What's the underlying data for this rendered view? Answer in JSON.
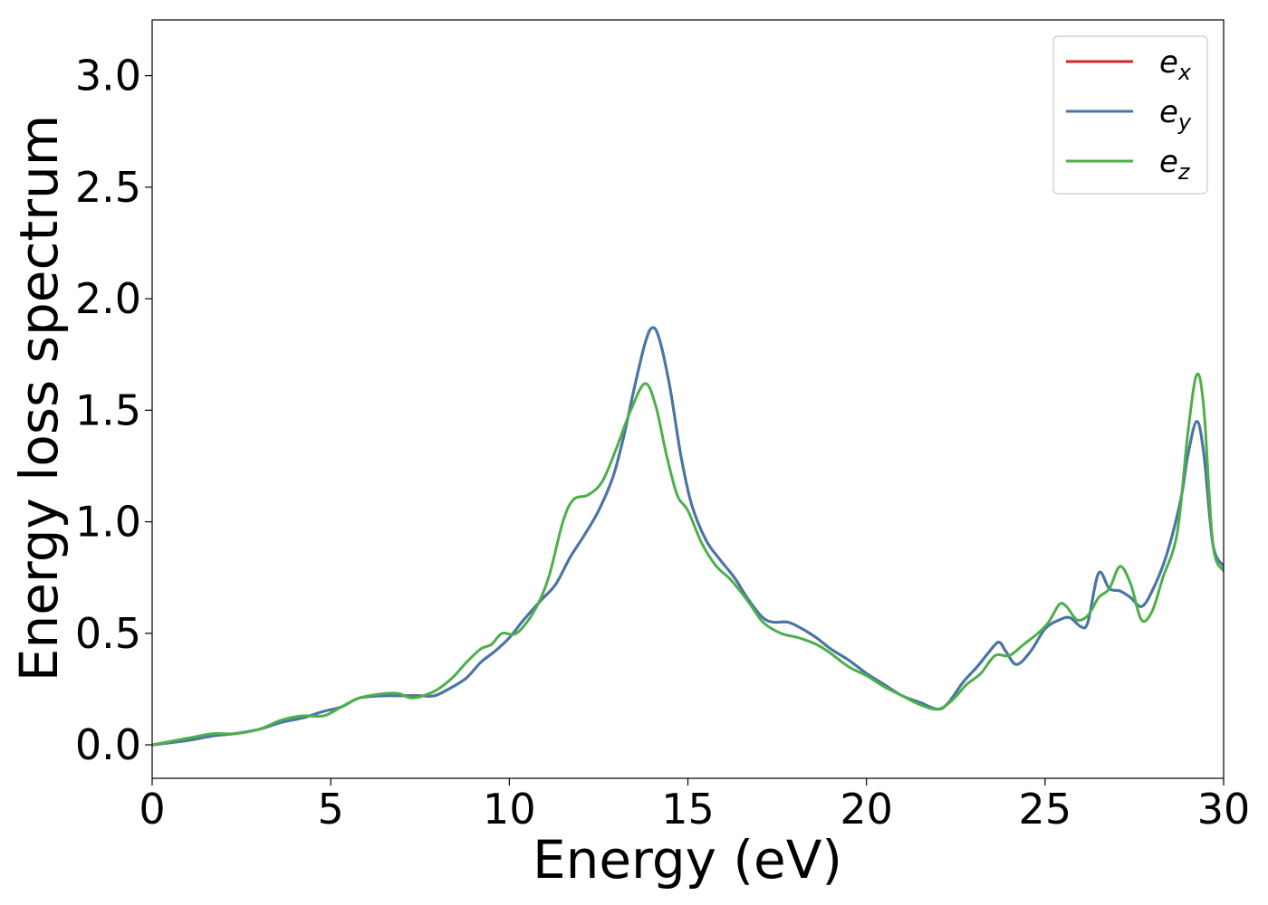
{
  "chart_data": {
    "type": "line",
    "xlabel": "Energy (eV)",
    "ylabel": "Energy loss spectrum",
    "xlim": [
      0,
      30
    ],
    "ylim": [
      -0.15,
      3.25
    ],
    "xticks": [
      0,
      5,
      10,
      15,
      20,
      25,
      30
    ],
    "yticks": [
      0.0,
      0.5,
      1.0,
      1.5,
      2.0,
      2.5,
      3.0
    ],
    "xtick_labels": [
      "0",
      "5",
      "10",
      "15",
      "20",
      "25",
      "30"
    ],
    "ytick_labels": [
      "0.0",
      "0.5",
      "1.0",
      "1.5",
      "2.0",
      "2.5",
      "3.0"
    ],
    "grid": false,
    "legend_position": "top-right",
    "series": [
      {
        "name": "e_x",
        "label_main": "e",
        "label_sub": "x",
        "color": "#d62728",
        "x": [
          0,
          1,
          1.7,
          2.3,
          3,
          3.6,
          4.2,
          4.8,
          5.3,
          5.8,
          6.5,
          7,
          7.5,
          7.9,
          8.3,
          8.8,
          9.2,
          9.6,
          10,
          10.4,
          10.9,
          11.3,
          11.7,
          12.1,
          12.5,
          12.9,
          13.2,
          13.5,
          13.8,
          14,
          14.2,
          14.5,
          14.8,
          15.1,
          15.5,
          15.9,
          16.3,
          16.7,
          17.1,
          17.4,
          17.8,
          18.2,
          18.6,
          19,
          19.5,
          20,
          20.5,
          21,
          21.5,
          22,
          22.3,
          22.7,
          23.1,
          23.4,
          23.7,
          23.9,
          24.2,
          24.6,
          25,
          25.4,
          25.7,
          26,
          26.2,
          26.5,
          26.8,
          27.1,
          27.4,
          27.7,
          28,
          28.4,
          28.8,
          29,
          29.25,
          29.45,
          29.7,
          30
        ],
        "values": [
          0,
          0.02,
          0.04,
          0.05,
          0.07,
          0.1,
          0.12,
          0.15,
          0.17,
          0.21,
          0.22,
          0.22,
          0.22,
          0.22,
          0.25,
          0.3,
          0.37,
          0.42,
          0.48,
          0.56,
          0.65,
          0.72,
          0.84,
          0.94,
          1.05,
          1.2,
          1.38,
          1.6,
          1.8,
          1.87,
          1.82,
          1.6,
          1.3,
          1.08,
          0.92,
          0.83,
          0.75,
          0.65,
          0.57,
          0.55,
          0.55,
          0.52,
          0.48,
          0.43,
          0.38,
          0.32,
          0.27,
          0.22,
          0.19,
          0.16,
          0.19,
          0.28,
          0.35,
          0.41,
          0.46,
          0.42,
          0.36,
          0.42,
          0.52,
          0.56,
          0.57,
          0.53,
          0.55,
          0.77,
          0.7,
          0.69,
          0.66,
          0.62,
          0.69,
          0.85,
          1.1,
          1.3,
          1.45,
          1.3,
          0.9,
          0.8
        ]
      },
      {
        "name": "e_y",
        "label_main": "e",
        "label_sub": "y",
        "color": "#4477aa",
        "x": [
          0,
          1,
          1.7,
          2.3,
          3,
          3.6,
          4.2,
          4.8,
          5.3,
          5.8,
          6.5,
          7,
          7.5,
          7.9,
          8.3,
          8.8,
          9.2,
          9.6,
          10,
          10.4,
          10.9,
          11.3,
          11.7,
          12.1,
          12.5,
          12.9,
          13.2,
          13.5,
          13.8,
          14,
          14.2,
          14.5,
          14.8,
          15.1,
          15.5,
          15.9,
          16.3,
          16.7,
          17.1,
          17.4,
          17.8,
          18.2,
          18.6,
          19,
          19.5,
          20,
          20.5,
          21,
          21.5,
          22,
          22.3,
          22.7,
          23.1,
          23.4,
          23.7,
          23.9,
          24.2,
          24.6,
          25,
          25.4,
          25.7,
          26,
          26.2,
          26.5,
          26.8,
          27.1,
          27.4,
          27.7,
          28,
          28.4,
          28.8,
          29,
          29.25,
          29.45,
          29.7,
          30
        ],
        "values": [
          0,
          0.02,
          0.04,
          0.05,
          0.07,
          0.1,
          0.12,
          0.15,
          0.17,
          0.21,
          0.22,
          0.22,
          0.22,
          0.22,
          0.25,
          0.3,
          0.37,
          0.42,
          0.48,
          0.56,
          0.65,
          0.72,
          0.84,
          0.94,
          1.05,
          1.2,
          1.38,
          1.6,
          1.8,
          1.87,
          1.82,
          1.6,
          1.3,
          1.08,
          0.92,
          0.83,
          0.75,
          0.65,
          0.57,
          0.55,
          0.55,
          0.52,
          0.48,
          0.43,
          0.38,
          0.32,
          0.27,
          0.22,
          0.19,
          0.16,
          0.19,
          0.28,
          0.35,
          0.41,
          0.46,
          0.42,
          0.36,
          0.42,
          0.52,
          0.56,
          0.57,
          0.53,
          0.55,
          0.77,
          0.7,
          0.69,
          0.66,
          0.62,
          0.69,
          0.85,
          1.1,
          1.3,
          1.45,
          1.3,
          0.9,
          0.8
        ]
      },
      {
        "name": "e_z",
        "label_main": "e",
        "label_sub": "z",
        "color": "#4daf4a",
        "x": [
          0,
          1,
          1.7,
          2.3,
          3,
          3.6,
          4.2,
          4.8,
          5.3,
          5.8,
          6.5,
          6.9,
          7.3,
          7.9,
          8.4,
          8.8,
          9.2,
          9.5,
          9.8,
          10.2,
          10.7,
          11.1,
          11.5,
          11.8,
          12.2,
          12.6,
          13,
          13.4,
          13.8,
          14.1,
          14.4,
          14.7,
          15,
          15.4,
          15.8,
          16.2,
          16.7,
          17.1,
          17.6,
          18.1,
          18.6,
          19,
          19.5,
          20,
          20.5,
          21,
          21.5,
          22,
          22.4,
          22.8,
          23.2,
          23.6,
          24,
          24.4,
          24.8,
          25.1,
          25.4,
          25.6,
          25.9,
          26.2,
          26.5,
          26.8,
          27.1,
          27.4,
          27.7,
          28,
          28.3,
          28.7,
          29,
          29.25,
          29.45,
          29.7,
          30
        ],
        "values": [
          0,
          0.03,
          0.05,
          0.05,
          0.07,
          0.11,
          0.13,
          0.13,
          0.17,
          0.21,
          0.23,
          0.23,
          0.21,
          0.24,
          0.3,
          0.37,
          0.43,
          0.45,
          0.5,
          0.5,
          0.6,
          0.75,
          1.0,
          1.1,
          1.12,
          1.18,
          1.33,
          1.5,
          1.62,
          1.52,
          1.3,
          1.12,
          1.05,
          0.9,
          0.8,
          0.74,
          0.64,
          0.55,
          0.5,
          0.48,
          0.45,
          0.41,
          0.35,
          0.31,
          0.26,
          0.22,
          0.18,
          0.16,
          0.2,
          0.27,
          0.32,
          0.4,
          0.4,
          0.45,
          0.5,
          0.55,
          0.63,
          0.62,
          0.56,
          0.58,
          0.66,
          0.7,
          0.8,
          0.72,
          0.56,
          0.6,
          0.75,
          0.95,
          1.4,
          1.66,
          1.5,
          0.9,
          0.78
        ]
      }
    ]
  }
}
